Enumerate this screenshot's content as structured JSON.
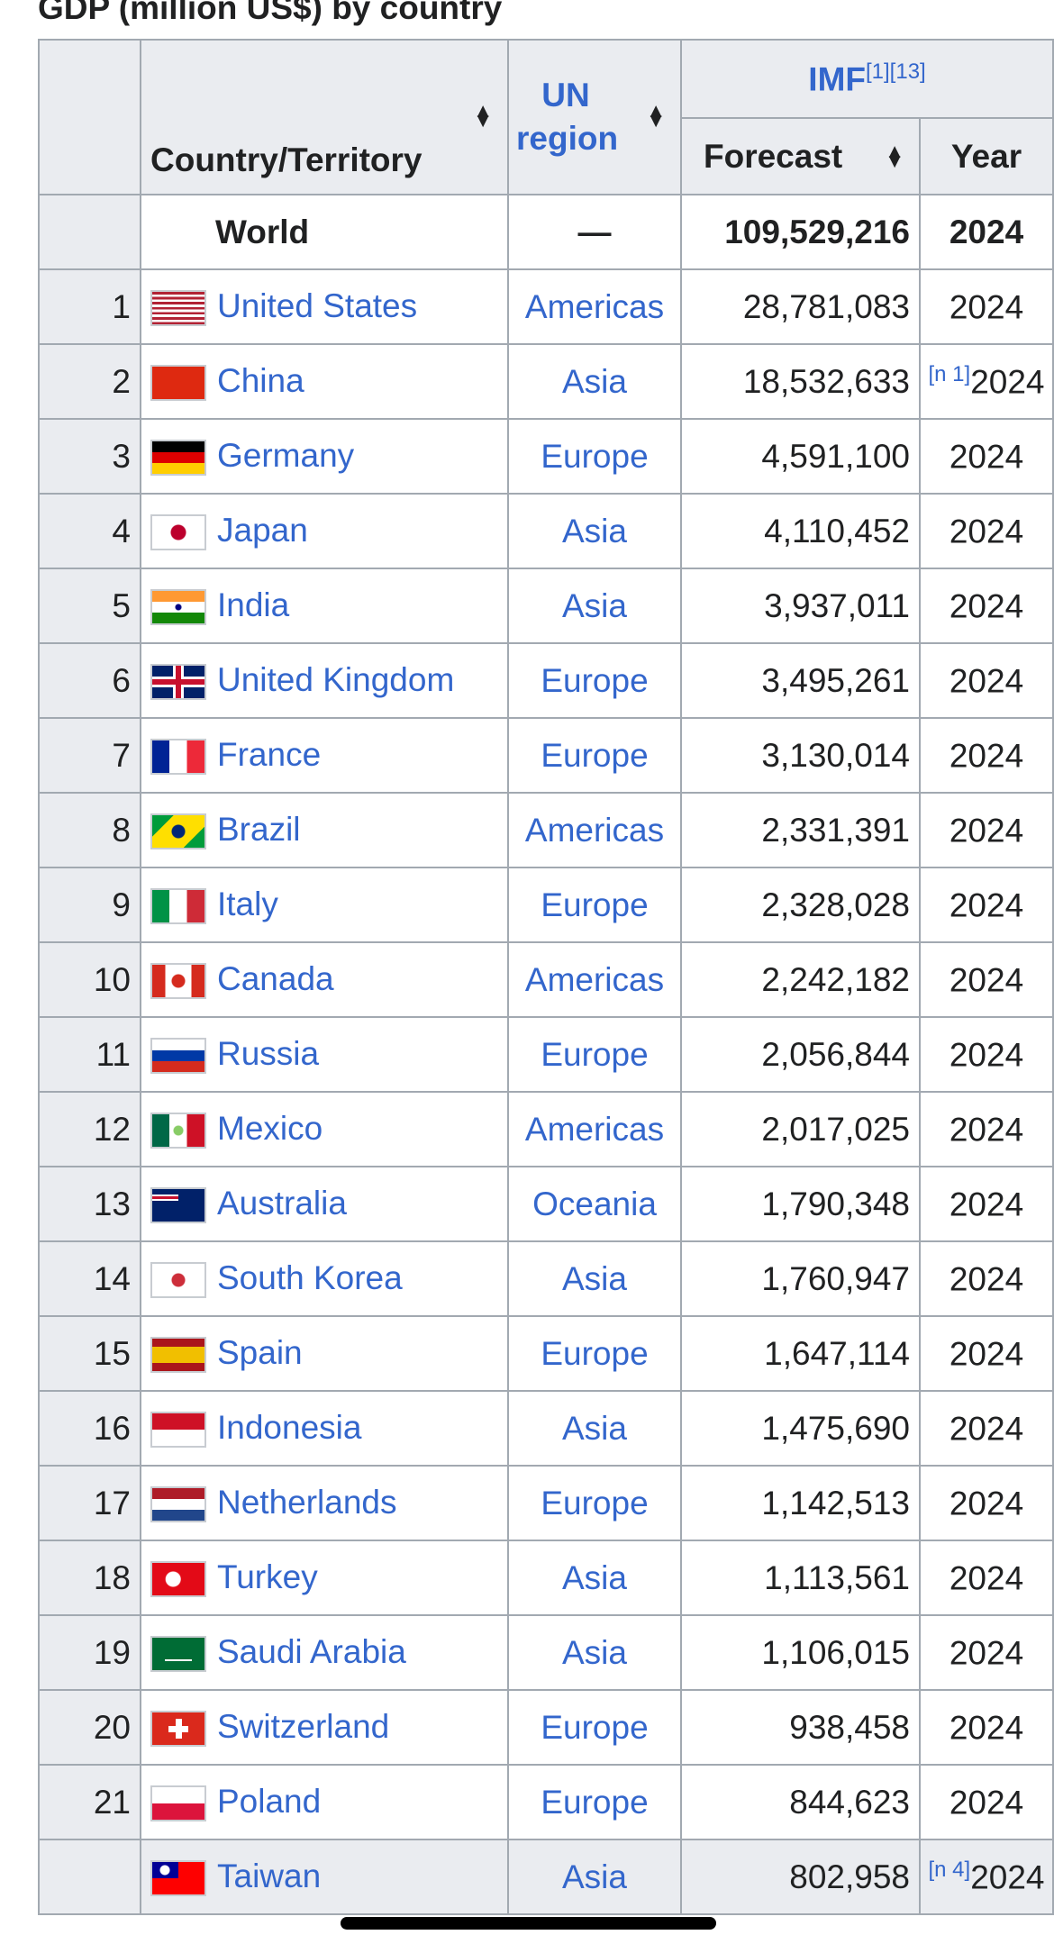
{
  "title": "GDP (million US$) by country",
  "headers": {
    "country": "Country/Territory",
    "region": "UN region",
    "imf": "IMF",
    "imf_refs": "[1][13]",
    "forecast": "Forecast",
    "year": "Year"
  },
  "world": {
    "name": "World",
    "region": "—",
    "forecast": "109,529,216",
    "year": "2024"
  },
  "rows": [
    {
      "rank": "1",
      "country": "United States",
      "flag": "us",
      "region": "Americas",
      "forecast": "28,781,083",
      "note": "",
      "year": "2024"
    },
    {
      "rank": "2",
      "country": "China",
      "flag": "cn",
      "region": "Asia",
      "forecast": "18,532,633",
      "note": "[n 1]",
      "year": "2024"
    },
    {
      "rank": "3",
      "country": "Germany",
      "flag": "de",
      "region": "Europe",
      "forecast": "4,591,100",
      "note": "",
      "year": "2024"
    },
    {
      "rank": "4",
      "country": "Japan",
      "flag": "jp",
      "region": "Asia",
      "forecast": "4,110,452",
      "note": "",
      "year": "2024"
    },
    {
      "rank": "5",
      "country": "India",
      "flag": "in",
      "region": "Asia",
      "forecast": "3,937,011",
      "note": "",
      "year": "2024"
    },
    {
      "rank": "6",
      "country": "United Kingdom",
      "flag": "gb",
      "region": "Europe",
      "forecast": "3,495,261",
      "note": "",
      "year": "2024"
    },
    {
      "rank": "7",
      "country": "France",
      "flag": "fr",
      "region": "Europe",
      "forecast": "3,130,014",
      "note": "",
      "year": "2024"
    },
    {
      "rank": "8",
      "country": "Brazil",
      "flag": "br",
      "region": "Americas",
      "forecast": "2,331,391",
      "note": "",
      "year": "2024"
    },
    {
      "rank": "9",
      "country": "Italy",
      "flag": "it",
      "region": "Europe",
      "forecast": "2,328,028",
      "note": "",
      "year": "2024"
    },
    {
      "rank": "10",
      "country": "Canada",
      "flag": "ca",
      "region": "Americas",
      "forecast": "2,242,182",
      "note": "",
      "year": "2024"
    },
    {
      "rank": "11",
      "country": "Russia",
      "flag": "ru",
      "region": "Europe",
      "forecast": "2,056,844",
      "note": "",
      "year": "2024"
    },
    {
      "rank": "12",
      "country": "Mexico",
      "flag": "mx",
      "region": "Americas",
      "forecast": "2,017,025",
      "note": "",
      "year": "2024"
    },
    {
      "rank": "13",
      "country": "Australia",
      "flag": "au",
      "region": "Oceania",
      "forecast": "1,790,348",
      "note": "",
      "year": "2024"
    },
    {
      "rank": "14",
      "country": "South Korea",
      "flag": "kr",
      "region": "Asia",
      "forecast": "1,760,947",
      "note": "",
      "year": "2024"
    },
    {
      "rank": "15",
      "country": "Spain",
      "flag": "es",
      "region": "Europe",
      "forecast": "1,647,114",
      "note": "",
      "year": "2024"
    },
    {
      "rank": "16",
      "country": "Indonesia",
      "flag": "id",
      "region": "Asia",
      "forecast": "1,475,690",
      "note": "",
      "year": "2024"
    },
    {
      "rank": "17",
      "country": "Netherlands",
      "flag": "nl",
      "region": "Europe",
      "forecast": "1,142,513",
      "note": "",
      "year": "2024"
    },
    {
      "rank": "18",
      "country": "Turkey",
      "flag": "tr",
      "region": "Asia",
      "forecast": "1,113,561",
      "note": "",
      "year": "2024"
    },
    {
      "rank": "19",
      "country": "Saudi Arabia",
      "flag": "sa",
      "region": "Asia",
      "forecast": "1,106,015",
      "note": "",
      "year": "2024"
    },
    {
      "rank": "20",
      "country": "Switzerland",
      "flag": "ch",
      "region": "Europe",
      "forecast": "938,458",
      "note": "",
      "year": "2024"
    },
    {
      "rank": "21",
      "country": "Poland",
      "flag": "pl",
      "region": "Europe",
      "forecast": "844,623",
      "note": "",
      "year": "2024"
    },
    {
      "rank": "",
      "country": "Taiwan",
      "flag": "tw",
      "region": "Asia",
      "forecast": "802,958",
      "note": "[n 4]",
      "year": "2024"
    }
  ],
  "colors": {
    "link": "#3366cc",
    "header_bg": "#eaecf0",
    "border": "#a2a9b1"
  }
}
